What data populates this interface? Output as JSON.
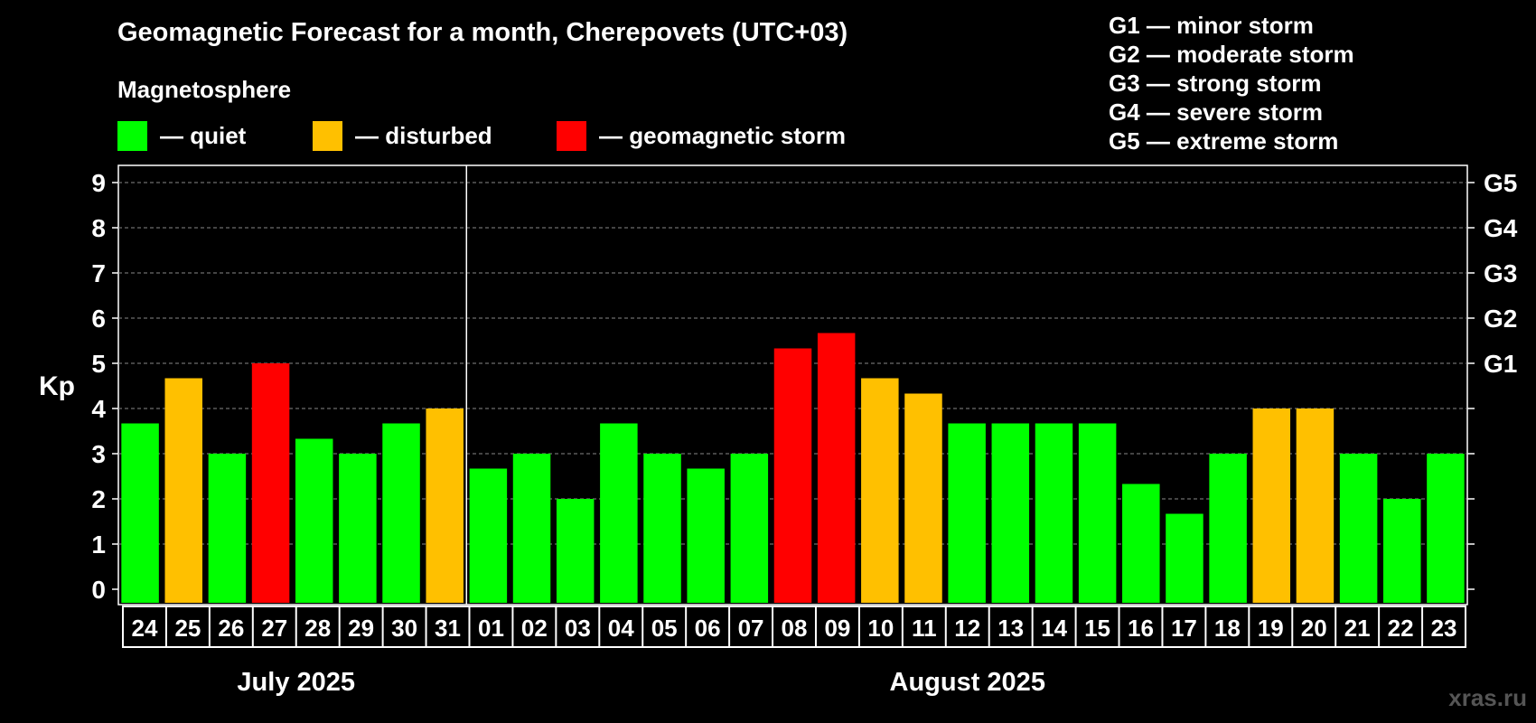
{
  "title": "Geomagnetic Forecast for a month, Cherepovets (UTC+03)",
  "legend": {
    "heading": "Magnetosphere",
    "items": [
      {
        "label": "— quiet",
        "color": "#00ff00"
      },
      {
        "label": "— disturbed",
        "color": "#ffc000"
      },
      {
        "label": "— geomagnetic storm",
        "color": "#ff0000"
      }
    ]
  },
  "g_levels": [
    "G1 — minor storm",
    "G2 — moderate storm",
    "G3 — strong storm",
    "G4 — severe storm",
    "G5 — extreme storm"
  ],
  "watermark": "xras.ru",
  "chart_data": {
    "type": "bar",
    "title": "Geomagnetic Forecast for a month, Cherepovets (UTC+03)",
    "ylabel": "Kp",
    "ylim": [
      0,
      9
    ],
    "yticks": [
      "0",
      "1",
      "2",
      "3",
      "4",
      "5",
      "6",
      "7",
      "8",
      "9"
    ],
    "right_ticks": [
      {
        "value": 5,
        "label": "G1"
      },
      {
        "value": 6,
        "label": "G2"
      },
      {
        "value": 7,
        "label": "G3"
      },
      {
        "value": 8,
        "label": "G4"
      },
      {
        "value": 9,
        "label": "G5"
      }
    ],
    "grid": true,
    "categories": [
      "24",
      "25",
      "26",
      "27",
      "28",
      "29",
      "30",
      "31",
      "01",
      "02",
      "03",
      "04",
      "05",
      "06",
      "07",
      "08",
      "09",
      "10",
      "11",
      "12",
      "13",
      "14",
      "15",
      "16",
      "17",
      "18",
      "19",
      "20",
      "21",
      "22",
      "23"
    ],
    "values": [
      3.67,
      4.67,
      3.0,
      5.0,
      3.33,
      3.0,
      3.67,
      4.0,
      2.67,
      3.0,
      2.0,
      3.67,
      3.0,
      2.67,
      3.0,
      5.33,
      5.67,
      4.67,
      4.33,
      3.67,
      3.67,
      3.67,
      3.67,
      2.33,
      1.67,
      3.0,
      4.0,
      4.0,
      3.0,
      2.0,
      3.0
    ],
    "status": [
      "quiet",
      "disturbed",
      "quiet",
      "storm",
      "quiet",
      "quiet",
      "quiet",
      "disturbed",
      "quiet",
      "quiet",
      "quiet",
      "quiet",
      "quiet",
      "quiet",
      "quiet",
      "storm",
      "storm",
      "disturbed",
      "disturbed",
      "quiet",
      "quiet",
      "quiet",
      "quiet",
      "quiet",
      "quiet",
      "quiet",
      "disturbed",
      "disturbed",
      "quiet",
      "quiet",
      "quiet"
    ],
    "colors": {
      "quiet": "#00ff00",
      "disturbed": "#ffc000",
      "storm": "#ff0000"
    },
    "months": [
      {
        "label": "July 2025",
        "start": 0,
        "count": 8
      },
      {
        "label": "August 2025",
        "start": 8,
        "count": 23
      }
    ]
  }
}
